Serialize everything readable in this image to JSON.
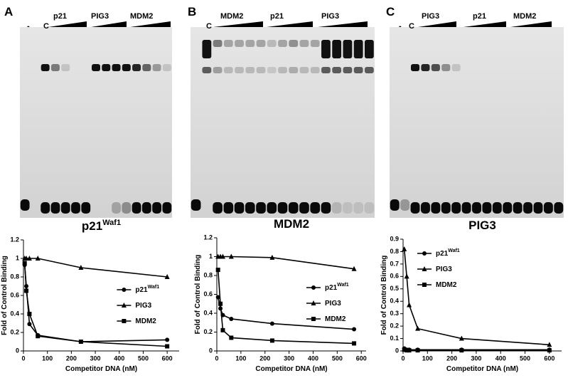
{
  "panels": [
    "A",
    "B",
    "C"
  ],
  "gels": [
    {
      "lanes": [
        "-",
        "C",
        "p21",
        "PIG3",
        "MDM2"
      ]
    },
    {
      "lanes": [
        "C",
        "MDM2",
        "p21",
        "PIG3"
      ]
    },
    {
      "lanes": [
        "-",
        "C",
        "PIG3",
        "p21",
        "MDM2"
      ]
    }
  ],
  "chart_data": [
    {
      "type": "line",
      "title": "p21",
      "title_sup": "Waf1",
      "x_label": "Competitor DNA (nM)",
      "y_label": "Fold of Control Binding",
      "xlim": [
        0,
        650
      ],
      "xticks": [
        0,
        100,
        200,
        300,
        400,
        500,
        600
      ],
      "ylim": [
        0,
        1.2
      ],
      "yticks": [
        0,
        0.2,
        0.4,
        0.6,
        0.8,
        1,
        1.2
      ],
      "legend": "center right",
      "x": [
        5,
        12,
        25,
        60,
        240,
        600
      ],
      "series": [
        {
          "name": "p21",
          "name_sup": "Waf1",
          "marker": "circle",
          "color": "#000000",
          "values": [
            0.93,
            0.7,
            0.29,
            0.17,
            0.1,
            0.12
          ]
        },
        {
          "name": "PIG3",
          "marker": "triangle",
          "color": "#000000",
          "values": [
            1,
            1,
            1,
            1,
            0.9,
            0.8
          ]
        },
        {
          "name": "MDM2",
          "marker": "square",
          "color": "#000000",
          "values": [
            0.95,
            0.65,
            0.4,
            0.16,
            0.1,
            0.05
          ]
        }
      ]
    },
    {
      "type": "line",
      "title": "MDM2",
      "x_label": "Competitor DNA (nM)",
      "y_label": "Fold of Control Binding",
      "xlim": [
        0,
        620
      ],
      "xticks": [
        0,
        100,
        200,
        300,
        400,
        500,
        600
      ],
      "ylim": [
        0,
        1.2
      ],
      "yticks": [
        0,
        0.2,
        0.4,
        0.6,
        0.8,
        1,
        1.2
      ],
      "legend": "center right",
      "x": [
        5,
        15,
        25,
        60,
        230,
        570
      ],
      "series": [
        {
          "name": "p21",
          "name_sup": "Waf1",
          "marker": "circle",
          "color": "#000000",
          "values": [
            0.57,
            0.45,
            0.38,
            0.34,
            0.29,
            0.23
          ]
        },
        {
          "name": "PIG3",
          "marker": "triangle",
          "color": "#000000",
          "values": [
            1,
            1,
            1,
            1,
            0.99,
            0.87
          ]
        },
        {
          "name": "MDM2",
          "marker": "square",
          "color": "#000000",
          "values": [
            0.86,
            0.5,
            0.22,
            0.14,
            0.11,
            0.08
          ]
        }
      ]
    },
    {
      "type": "line",
      "title": "PIG3",
      "x_label": "Competitor DNA (nM)",
      "y_label": "Fold of Control Binding",
      "xlim": [
        0,
        650
      ],
      "xticks": [
        0,
        100,
        200,
        300,
        400,
        500,
        600
      ],
      "ylim": [
        0,
        0.9
      ],
      "yticks": [
        0,
        0.1,
        0.2,
        0.3,
        0.4,
        0.5,
        0.6,
        0.7,
        0.8,
        0.9
      ],
      "legend": "upper right",
      "x": [
        5,
        15,
        25,
        60,
        240,
        600
      ],
      "series": [
        {
          "name": "p21",
          "name_sup": "Waf1",
          "marker": "circle",
          "color": "#000000",
          "values": [
            0.02,
            0.01,
            0.01,
            0.01,
            0.01,
            0.01
          ]
        },
        {
          "name": "PIG3",
          "marker": "triangle",
          "color": "#000000",
          "values": [
            0.82,
            0.6,
            0.37,
            0.18,
            0.1,
            0.05
          ]
        },
        {
          "name": "MDM2",
          "marker": "square",
          "color": "#000000",
          "values": [
            0.01,
            0.005,
            0.005,
            0.005,
            0.005,
            0.005
          ]
        }
      ]
    }
  ]
}
